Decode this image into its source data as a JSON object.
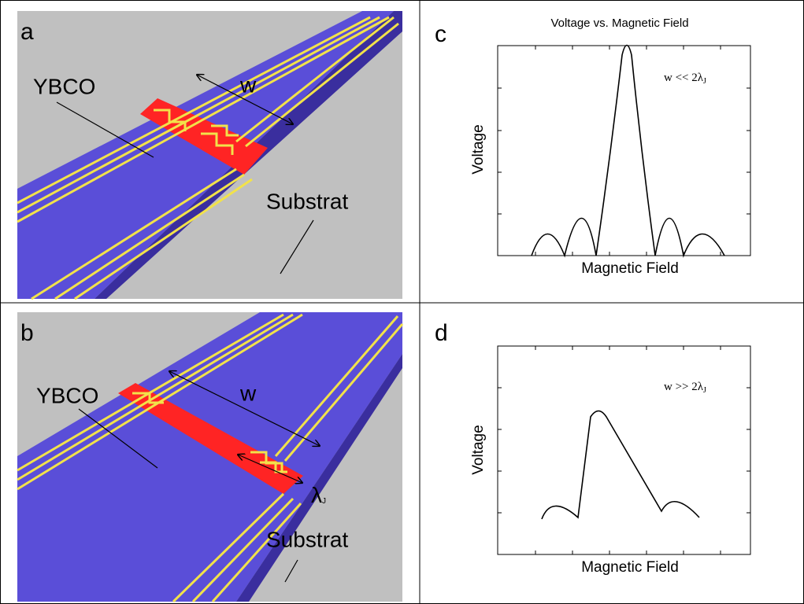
{
  "panels": [
    {
      "label": "a",
      "material": "YBCO",
      "width": "w",
      "substrate": "Substrat"
    },
    {
      "label": "b",
      "material": "YBCO",
      "width": "w",
      "josephson_length": {
        "symbol": "λ",
        "sub": "J"
      },
      "substrate": "Substrat"
    },
    {
      "label": "c",
      "title": "Voltage vs. Magnetic Field",
      "condition": {
        "text": "w << 2λ",
        "sub": "J"
      },
      "y_label": "Voltage",
      "x_label": "Magnetic Field"
    },
    {
      "label": "d",
      "condition": {
        "text": "w >> 2λ",
        "sub": "J"
      },
      "y_label": "Voltage",
      "x_label": "Magnetic Field"
    }
  ]
}
